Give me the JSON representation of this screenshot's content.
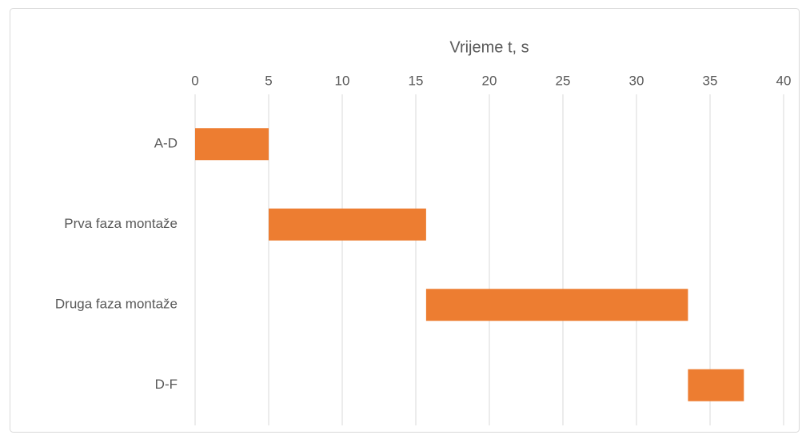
{
  "chart_data": {
    "type": "gantt",
    "title": "Vrijeme t, s",
    "categories": [
      "A-D",
      "Prva faza montaže",
      "Druga faza montaže",
      "D-F"
    ],
    "starts": [
      0,
      5,
      15.7,
      33.5
    ],
    "ends": [
      5,
      15.7,
      33.5,
      37.3
    ],
    "color": "#ed7d31",
    "xlim": [
      0,
      40
    ],
    "xticks": [
      0,
      5,
      10,
      15,
      20,
      25,
      30,
      35,
      40
    ],
    "grid": true
  }
}
